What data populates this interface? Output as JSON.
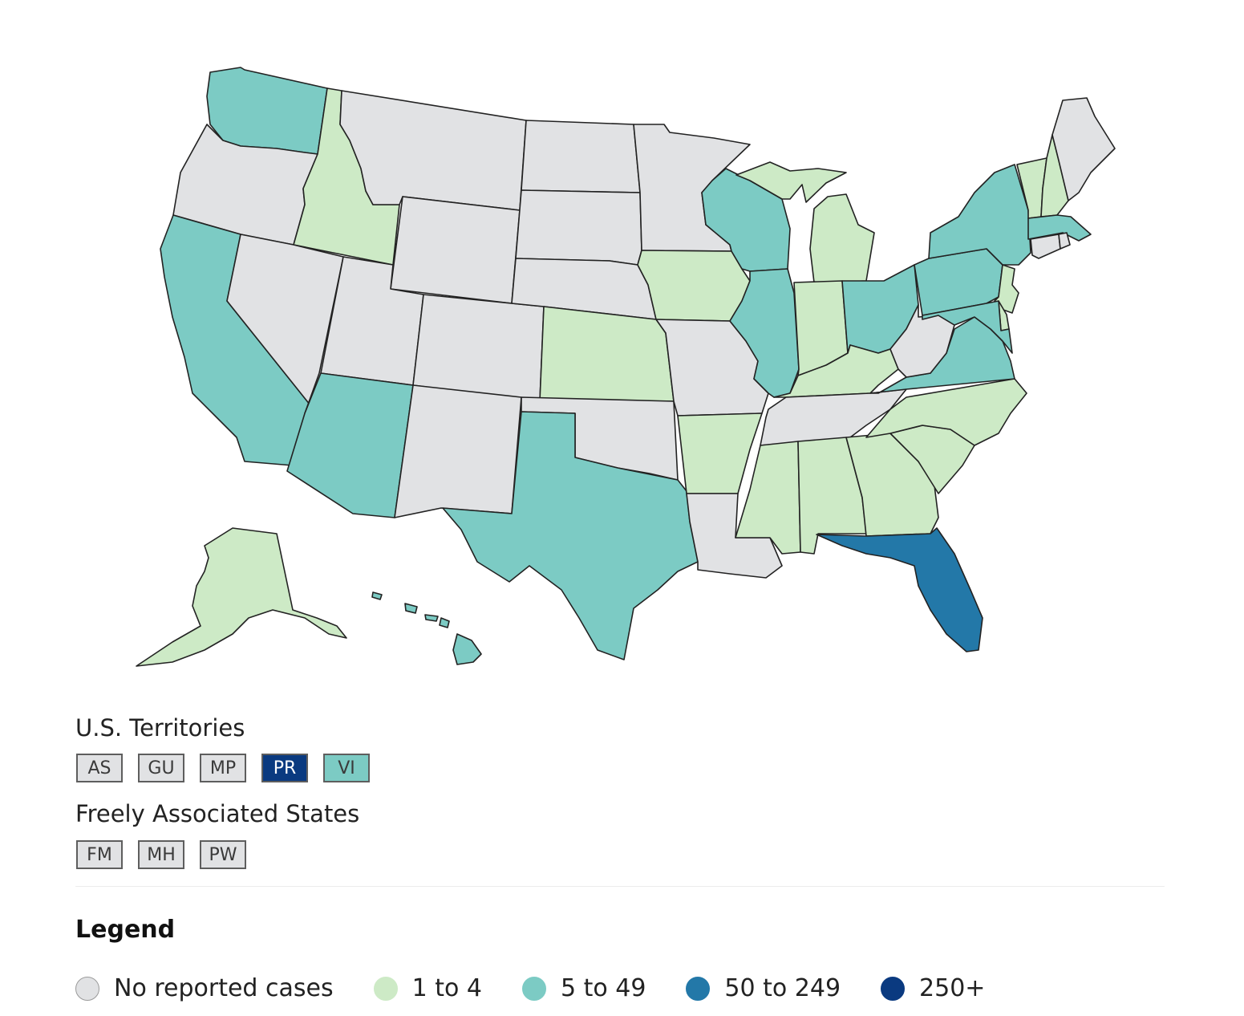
{
  "colors": {
    "none": "#e1e2e4",
    "low": "#cdeac6",
    "mid": "#7ccbc4",
    "high": "#2378a8",
    "top": "#0a3a80"
  },
  "states": [
    {
      "name": "Washington",
      "bin": "mid"
    },
    {
      "name": "Oregon",
      "bin": "none"
    },
    {
      "name": "California",
      "bin": "mid"
    },
    {
      "name": "Idaho",
      "bin": "low"
    },
    {
      "name": "Nevada",
      "bin": "none"
    },
    {
      "name": "Montana",
      "bin": "none"
    },
    {
      "name": "Wyoming",
      "bin": "none"
    },
    {
      "name": "Utah",
      "bin": "none"
    },
    {
      "name": "Arizona",
      "bin": "mid"
    },
    {
      "name": "Colorado",
      "bin": "none"
    },
    {
      "name": "New Mexico",
      "bin": "none"
    },
    {
      "name": "North Dakota",
      "bin": "none"
    },
    {
      "name": "South Dakota",
      "bin": "none"
    },
    {
      "name": "Nebraska",
      "bin": "none"
    },
    {
      "name": "Kansas",
      "bin": "low"
    },
    {
      "name": "Oklahoma",
      "bin": "none"
    },
    {
      "name": "Texas",
      "bin": "mid"
    },
    {
      "name": "Minnesota",
      "bin": "none"
    },
    {
      "name": "Iowa",
      "bin": "low"
    },
    {
      "name": "Missouri",
      "bin": "none"
    },
    {
      "name": "Arkansas",
      "bin": "low"
    },
    {
      "name": "Louisiana",
      "bin": "none"
    },
    {
      "name": "Wisconsin",
      "bin": "mid"
    },
    {
      "name": "Illinois",
      "bin": "mid"
    },
    {
      "name": "Michigan",
      "bin": "low"
    },
    {
      "name": "Indiana",
      "bin": "low"
    },
    {
      "name": "Ohio",
      "bin": "mid"
    },
    {
      "name": "Kentucky",
      "bin": "low"
    },
    {
      "name": "Tennessee",
      "bin": "none"
    },
    {
      "name": "Mississippi",
      "bin": "low"
    },
    {
      "name": "Alabama",
      "bin": "low"
    },
    {
      "name": "Georgia",
      "bin": "low"
    },
    {
      "name": "Florida",
      "bin": "high"
    },
    {
      "name": "South Carolina",
      "bin": "low"
    },
    {
      "name": "North Carolina",
      "bin": "low"
    },
    {
      "name": "Virginia",
      "bin": "mid"
    },
    {
      "name": "West Virginia",
      "bin": "none"
    },
    {
      "name": "Pennsylvania",
      "bin": "mid"
    },
    {
      "name": "New York",
      "bin": "mid"
    },
    {
      "name": "Vermont",
      "bin": "low"
    },
    {
      "name": "New Hampshire",
      "bin": "low"
    },
    {
      "name": "Maine",
      "bin": "none"
    },
    {
      "name": "Massachusetts",
      "bin": "mid"
    },
    {
      "name": "Connecticut",
      "bin": "none"
    },
    {
      "name": "Rhode Island",
      "bin": "none"
    },
    {
      "name": "New Jersey",
      "bin": "low"
    },
    {
      "name": "Delaware",
      "bin": "low"
    },
    {
      "name": "Maryland",
      "bin": "mid"
    },
    {
      "name": "Alaska",
      "bin": "low"
    },
    {
      "name": "Hawaii",
      "bin": "mid"
    }
  ],
  "territories": {
    "title": "U.S. Territories",
    "items": [
      {
        "code": "AS",
        "bin": "none"
      },
      {
        "code": "GU",
        "bin": "none"
      },
      {
        "code": "MP",
        "bin": "none"
      },
      {
        "code": "PR",
        "bin": "top"
      },
      {
        "code": "VI",
        "bin": "mid"
      }
    ]
  },
  "freely_associated": {
    "title": "Freely Associated States",
    "items": [
      {
        "code": "FM",
        "bin": "none"
      },
      {
        "code": "MH",
        "bin": "none"
      },
      {
        "code": "PW",
        "bin": "none"
      }
    ]
  },
  "legend": {
    "title": "Legend",
    "items": [
      {
        "label": "No reported cases",
        "bin": "none"
      },
      {
        "label": "1 to 4",
        "bin": "low"
      },
      {
        "label": "5 to 49",
        "bin": "mid"
      },
      {
        "label": "50 to 249",
        "bin": "high"
      },
      {
        "label": "250+",
        "bin": "top"
      }
    ]
  }
}
